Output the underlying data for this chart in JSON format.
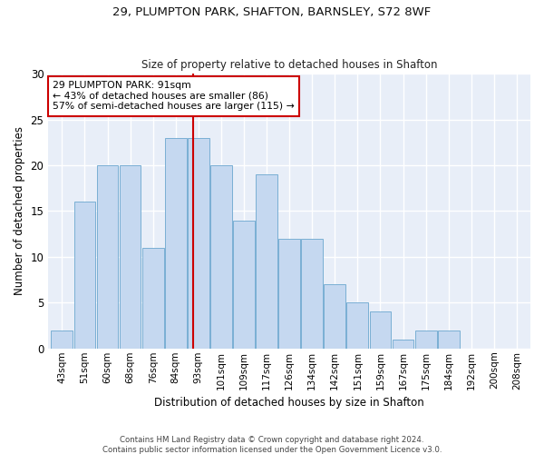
{
  "title1": "29, PLUMPTON PARK, SHAFTON, BARNSLEY, S72 8WF",
  "title2": "Size of property relative to detached houses in Shafton",
  "xlabel": "Distribution of detached houses by size in Shafton",
  "ylabel": "Number of detached properties",
  "categories": [
    "43sqm",
    "51sqm",
    "60sqm",
    "68sqm",
    "76sqm",
    "84sqm",
    "93sqm",
    "101sqm",
    "109sqm",
    "117sqm",
    "126sqm",
    "134sqm",
    "142sqm",
    "151sqm",
    "159sqm",
    "167sqm",
    "175sqm",
    "184sqm",
    "192sqm",
    "200sqm",
    "208sqm"
  ],
  "bar_values": [
    2,
    16,
    20,
    20,
    11,
    23,
    23,
    20,
    14,
    19,
    12,
    12,
    7,
    5,
    4,
    1,
    2,
    2,
    0,
    0,
    0
  ],
  "bar_color": "#c5d8f0",
  "bar_edgecolor": "#7aafd4",
  "annotation_text": "29 PLUMPTON PARK: 91sqm\n← 43% of detached houses are smaller (86)\n57% of semi-detached houses are larger (115) →",
  "annotation_box_color": "#ffffff",
  "annotation_box_edgecolor": "#cc0000",
  "vline_color": "#cc0000",
  "vline_xindex": 6,
  "ylim": [
    0,
    30
  ],
  "yticks": [
    0,
    5,
    10,
    15,
    20,
    25,
    30
  ],
  "fig_bg": "#ffffff",
  "axes_bg": "#e8eef8",
  "grid_color": "#ffffff",
  "footer1": "Contains HM Land Registry data © Crown copyright and database right 2024.",
  "footer2": "Contains public sector information licensed under the Open Government Licence v3.0."
}
